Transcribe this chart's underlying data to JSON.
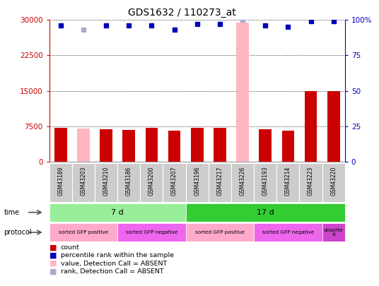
{
  "title": "GDS1632 / 110273_at",
  "samples": [
    "GSM43189",
    "GSM43203",
    "GSM43210",
    "GSM43186",
    "GSM43200",
    "GSM43207",
    "GSM43196",
    "GSM43217",
    "GSM43226",
    "GSM43193",
    "GSM43214",
    "GSM43223",
    "GSM43220"
  ],
  "count_values": [
    7200,
    7000,
    6900,
    6700,
    7200,
    6500,
    7200,
    7200,
    29500,
    6900,
    6500,
    15000,
    15000
  ],
  "count_absent": [
    false,
    true,
    false,
    false,
    false,
    false,
    false,
    false,
    true,
    false,
    false,
    false,
    false
  ],
  "percentile_values": [
    96,
    93,
    96,
    96,
    96,
    93,
    97,
    97,
    100,
    96,
    95,
    99,
    99
  ],
  "percentile_absent": [
    false,
    true,
    false,
    false,
    false,
    false,
    false,
    false,
    true,
    false,
    false,
    false,
    false
  ],
  "ylim_left": [
    0,
    30000
  ],
  "ylim_right": [
    0,
    100
  ],
  "yticks_left": [
    0,
    7500,
    15000,
    22500,
    30000
  ],
  "yticks_right": [
    0,
    25,
    50,
    75,
    100
  ],
  "time_groups": [
    {
      "label": "7 d",
      "start": 0,
      "end": 6,
      "color": "#99EE99"
    },
    {
      "label": "17 d",
      "start": 6,
      "end": 13,
      "color": "#33CC33"
    }
  ],
  "protocol_groups": [
    {
      "label": "sorted GFP positive",
      "start": 0,
      "end": 3,
      "color": "#FFAACC"
    },
    {
      "label": "sorted GFP negative",
      "start": 3,
      "end": 6,
      "color": "#EE66EE"
    },
    {
      "label": "sorted GFP positive",
      "start": 6,
      "end": 9,
      "color": "#FFAACC"
    },
    {
      "label": "sorted GFP negative",
      "start": 9,
      "end": 12,
      "color": "#EE66EE"
    },
    {
      "label": "unsorte\nd",
      "start": 12,
      "end": 13,
      "color": "#CC44CC"
    }
  ],
  "bar_color_normal": "#CC0000",
  "bar_color_absent": "#FFB6C1",
  "dot_color_normal": "#0000BB",
  "dot_color_absent": "#AAAACC",
  "left_axis_color": "#CC0000",
  "right_axis_color": "#0000BB",
  "sample_bg_color": "#CCCCCC",
  "legend_items": [
    {
      "color": "#CC0000",
      "label": "count"
    },
    {
      "color": "#0000BB",
      "label": "percentile rank within the sample"
    },
    {
      "color": "#FFB6C1",
      "label": "value, Detection Call = ABSENT"
    },
    {
      "color": "#AAAACC",
      "label": "rank, Detection Call = ABSENT"
    }
  ]
}
